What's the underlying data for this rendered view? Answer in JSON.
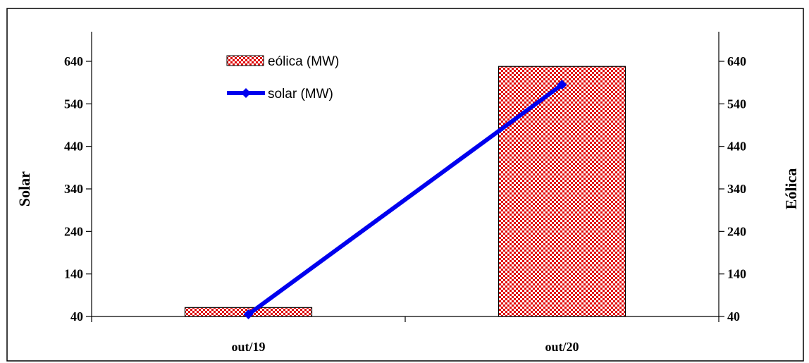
{
  "chart_data": {
    "type": "bar",
    "categories": [
      "out/19",
      "out/20"
    ],
    "series": [
      {
        "name": "eólica (MW)",
        "kind": "bar",
        "axis": "right",
        "values": [
          61,
          628
        ],
        "color": "#e00000"
      },
      {
        "name": "solar (MW)",
        "kind": "line",
        "axis": "left",
        "values": [
          45,
          585
        ],
        "color": "#0000ee"
      }
    ],
    "ylabel_left": "Solar",
    "ylabel_right": "Eólica",
    "ylim": [
      40,
      640
    ],
    "yticks": [
      40,
      140,
      240,
      340,
      440,
      540,
      640
    ],
    "grid": false,
    "legend_position": "top-center"
  }
}
